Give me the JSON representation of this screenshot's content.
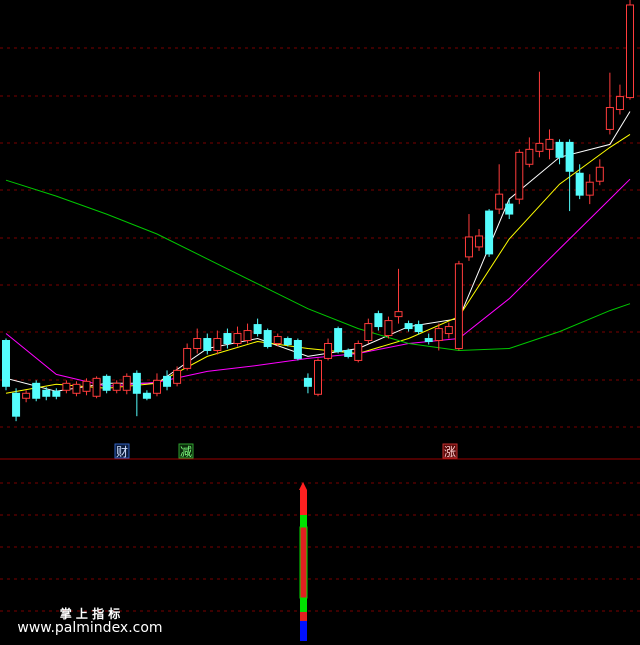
{
  "chart_data": {
    "type": "candlestick",
    "ylim": [
      0,
      460
    ],
    "up_color": "#ff3c3c",
    "down_color": "#54fcfc",
    "open": [
      118,
      65,
      60,
      75,
      68,
      67,
      68,
      65,
      67,
      62,
      82,
      68,
      68,
      85,
      65,
      65,
      82,
      75,
      90,
      110,
      120,
      108,
      125,
      115,
      118,
      134,
      128,
      115,
      120,
      118,
      80,
      64,
      100,
      130,
      108,
      98,
      118,
      145,
      123,
      142,
      135,
      134,
      120,
      118,
      125,
      110,
      202,
      212,
      248,
      250,
      255,
      260,
      295,
      308,
      310,
      317,
      317,
      286,
      264,
      278,
      330,
      350,
      362
    ],
    "high": [
      120,
      70,
      68,
      78,
      71,
      70,
      78,
      77,
      80,
      82,
      84,
      78,
      85,
      88,
      68,
      85,
      88,
      92,
      115,
      130,
      125,
      128,
      130,
      132,
      135,
      140,
      130,
      125,
      122,
      120,
      85,
      100,
      120,
      132,
      110,
      118,
      140,
      148,
      142,
      190,
      138,
      138,
      125,
      135,
      136,
      198,
      245,
      230,
      250,
      295,
      260,
      310,
      322,
      388,
      330,
      320,
      320,
      295,
      285,
      300,
      387,
      375,
      460
    ],
    "low": [
      68,
      37,
      56,
      57,
      58,
      59,
      65,
      62,
      63,
      60,
      65,
      65,
      64,
      42,
      58,
      62,
      68,
      72,
      88,
      105,
      104,
      104,
      110,
      112,
      115,
      122,
      110,
      112,
      112,
      98,
      65,
      62,
      98,
      105,
      100,
      96,
      115,
      128,
      120,
      135,
      127,
      124,
      114,
      108,
      120,
      108,
      198,
      208,
      202,
      245,
      240,
      255,
      292,
      302,
      300,
      295,
      248,
      260,
      255,
      274,
      325,
      345,
      360
    ],
    "close": [
      72,
      42,
      65,
      60,
      62,
      62,
      75,
      74,
      77,
      80,
      68,
      75,
      82,
      65,
      60,
      78,
      72,
      88,
      110,
      120,
      108,
      120,
      115,
      125,
      128,
      125,
      112,
      122,
      114,
      100,
      72,
      98,
      115,
      107,
      102,
      115,
      135,
      132,
      138,
      147,
      130,
      127,
      117,
      130,
      132,
      195,
      222,
      223,
      205,
      265,
      245,
      307,
      310,
      316,
      320,
      302,
      288,
      264,
      277,
      292,
      352,
      363,
      455
    ],
    "series": [
      {
        "name": "MA5",
        "color": "#ffffff",
        "x": [
          0,
          5,
          10,
          15,
          20,
          25,
          30,
          35,
          40,
          45,
          50,
          55,
          60,
          62
        ],
        "values": [
          80,
          67,
          75,
          75,
          110,
          120,
          102,
          110,
          132,
          140,
          260,
          302,
          315,
          348
        ]
      },
      {
        "name": "MA10",
        "color": "#ffff00",
        "x": [
          0,
          5,
          10,
          15,
          20,
          25,
          30,
          35,
          40,
          45,
          50,
          55,
          60,
          62
        ],
        "values": [
          65,
          74,
          70,
          75,
          102,
          117,
          110,
          105,
          120,
          142,
          220,
          275,
          312,
          325
        ]
      },
      {
        "name": "MA20",
        "color": "#ff00ff",
        "x": [
          0,
          5,
          10,
          15,
          20,
          25,
          30,
          35,
          40,
          45,
          50,
          55,
          60,
          62
        ],
        "values": [
          125,
          84,
          72,
          76,
          87,
          93,
          100,
          105,
          115,
          120,
          160,
          210,
          260,
          280
        ]
      },
      {
        "name": "MA60",
        "color": "#00c800",
        "x": [
          0,
          5,
          10,
          15,
          20,
          25,
          30,
          35,
          40,
          45,
          50,
          55,
          60,
          62
        ],
        "values": [
          279,
          263,
          245,
          225,
          200,
          175,
          150,
          130,
          115,
          108,
          110,
          127,
          148,
          155
        ]
      }
    ],
    "annotations": [
      "财",
      "减",
      "涨"
    ]
  },
  "watermark": {
    "title": "掌 上 指 标",
    "url": "www.palmindex.com"
  }
}
